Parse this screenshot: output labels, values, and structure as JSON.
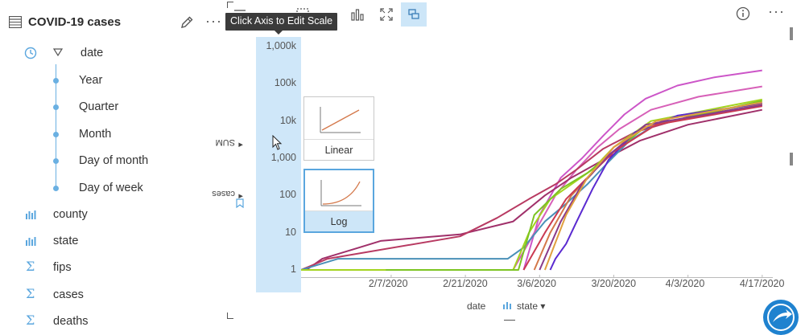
{
  "dataset": {
    "title": "COVID-19 cases",
    "date_field": "date",
    "date_subfields": [
      "Year",
      "Quarter",
      "Month",
      "Day of month",
      "Day of week"
    ],
    "fields": [
      {
        "label": "county",
        "type": "string"
      },
      {
        "label": "state",
        "type": "string"
      },
      {
        "label": "fips",
        "type": "number"
      },
      {
        "label": "cases",
        "type": "number"
      },
      {
        "label": "deaths",
        "type": "number"
      }
    ]
  },
  "card": {
    "tooltip": "Click Axis to Edit Scale",
    "active_tool": "scale-toggle",
    "y_axis_label": "SUM",
    "y_axis_field": "cases",
    "x_axis_field": "date",
    "color_field": "state",
    "scale_options": [
      "Linear",
      "Log"
    ],
    "selected_scale": "Log",
    "colors": {
      "accent": "#5aa6de",
      "axis_highlight": "#cfe7f9"
    }
  },
  "chart_data": {
    "type": "line",
    "title": "",
    "xlabel": "date",
    "ylabel": "SUM cases",
    "yscale": "log",
    "ylim": [
      1,
      1000000
    ],
    "y_ticks": [
      "1",
      "10",
      "100",
      "1,000",
      "10k",
      "100k",
      "1,000k"
    ],
    "x_range": [
      "2020-01-21",
      "2020-04-19"
    ],
    "x_ticks": [
      "2/7/2020",
      "2/21/2020",
      "3/6/2020",
      "3/20/2020",
      "4/3/2020",
      "4/17/2020"
    ],
    "legend": "none",
    "series": [
      {
        "color": "#cc55c8",
        "points": [
          [
            "2020-03-03",
            1
          ],
          [
            "2020-03-06",
            30
          ],
          [
            "2020-03-10",
            300
          ],
          [
            "2020-03-14",
            1000
          ],
          [
            "2020-03-18",
            4000
          ],
          [
            "2020-03-22",
            15000
          ],
          [
            "2020-03-26",
            40000
          ],
          [
            "2020-04-01",
            90000
          ],
          [
            "2020-04-08",
            150000
          ],
          [
            "2020-04-17",
            230000
          ]
        ]
      },
      {
        "color": "#d760b8",
        "points": [
          [
            "2020-03-01",
            1
          ],
          [
            "2020-03-05",
            10
          ],
          [
            "2020-03-09",
            100
          ],
          [
            "2020-03-13",
            500
          ],
          [
            "2020-03-17",
            2000
          ],
          [
            "2020-03-21",
            6000
          ],
          [
            "2020-03-27",
            20000
          ],
          [
            "2020-04-05",
            45000
          ],
          [
            "2020-04-17",
            85000
          ]
        ]
      },
      {
        "color": "#a0306a",
        "points": [
          [
            "2020-01-22",
            1
          ],
          [
            "2020-01-25",
            2
          ],
          [
            "2020-02-01",
            4
          ],
          [
            "2020-02-05",
            6
          ],
          [
            "2020-02-20",
            9
          ],
          [
            "2020-03-01",
            20
          ],
          [
            "2020-03-07",
            100
          ],
          [
            "2020-03-12",
            300
          ],
          [
            "2020-03-18",
            900
          ],
          [
            "2020-03-25",
            3000
          ],
          [
            "2020-04-03",
            8000
          ],
          [
            "2020-04-17",
            20000
          ]
        ]
      },
      {
        "color": "#b83a62",
        "points": [
          [
            "2020-01-21",
            1
          ],
          [
            "2020-01-26",
            2
          ],
          [
            "2020-02-20",
            8
          ],
          [
            "2020-02-27",
            25
          ],
          [
            "2020-03-04",
            80
          ],
          [
            "2020-03-09",
            200
          ],
          [
            "2020-03-13",
            500
          ],
          [
            "2020-03-18",
            1800
          ],
          [
            "2020-03-24",
            5000
          ],
          [
            "2020-04-03",
            13000
          ],
          [
            "2020-04-17",
            27000
          ]
        ]
      },
      {
        "color": "#4a90b8",
        "points": [
          [
            "2020-01-21",
            1
          ],
          [
            "2020-01-28",
            2
          ],
          [
            "2020-02-29",
            2
          ],
          [
            "2020-03-03",
            4
          ],
          [
            "2020-03-07",
            20
          ],
          [
            "2020-03-11",
            60
          ],
          [
            "2020-03-15",
            200
          ],
          [
            "2020-03-19",
            800
          ],
          [
            "2020-03-23",
            3000
          ],
          [
            "2020-03-30",
            12000
          ],
          [
            "2020-04-17",
            30000
          ]
        ]
      },
      {
        "color": "#a4d420",
        "points": [
          [
            "2020-01-21",
            1
          ],
          [
            "2020-03-01",
            1
          ],
          [
            "2020-03-04",
            10
          ],
          [
            "2020-03-08",
            80
          ],
          [
            "2020-03-12",
            200
          ],
          [
            "2020-03-16",
            500
          ],
          [
            "2020-03-20",
            2000
          ],
          [
            "2020-03-27",
            10000
          ],
          [
            "2020-04-17",
            38000
          ]
        ]
      },
      {
        "color": "#7cc422",
        "points": [
          [
            "2020-02-06",
            1
          ],
          [
            "2020-03-02",
            1
          ],
          [
            "2020-03-05",
            30
          ],
          [
            "2020-03-10",
            150
          ],
          [
            "2020-03-15",
            400
          ],
          [
            "2020-03-20",
            1500
          ],
          [
            "2020-03-26",
            7000
          ],
          [
            "2020-04-17",
            35000
          ]
        ]
      },
      {
        "color": "#5a2ad0",
        "points": [
          [
            "2020-03-08",
            1
          ],
          [
            "2020-03-09",
            2
          ],
          [
            "2020-03-11",
            5
          ],
          [
            "2020-03-13",
            20
          ],
          [
            "2020-03-16",
            150
          ],
          [
            "2020-03-19",
            900
          ],
          [
            "2020-03-24",
            5000
          ],
          [
            "2020-04-01",
            14000
          ],
          [
            "2020-04-17",
            30000
          ]
        ]
      },
      {
        "color": "#d4784a",
        "points": [
          [
            "2020-03-05",
            1
          ],
          [
            "2020-03-08",
            10
          ],
          [
            "2020-03-12",
            100
          ],
          [
            "2020-03-16",
            400
          ],
          [
            "2020-03-20",
            2000
          ],
          [
            "2020-03-26",
            7000
          ],
          [
            "2020-04-17",
            28000
          ]
        ]
      },
      {
        "color": "#ca3a52",
        "points": [
          [
            "2020-03-03",
            1
          ],
          [
            "2020-03-07",
            10
          ],
          [
            "2020-03-11",
            80
          ],
          [
            "2020-03-15",
            300
          ],
          [
            "2020-03-20",
            1500
          ],
          [
            "2020-03-28",
            8000
          ],
          [
            "2020-04-17",
            25000
          ]
        ]
      },
      {
        "color": "#8a3a8a",
        "points": [
          [
            "2020-03-06",
            1
          ],
          [
            "2020-03-10",
            20
          ],
          [
            "2020-03-14",
            200
          ],
          [
            "2020-03-19",
            1200
          ],
          [
            "2020-03-26",
            8000
          ],
          [
            "2020-04-17",
            27000
          ]
        ]
      },
      {
        "color": "#e0a040",
        "points": [
          [
            "2020-03-07",
            1
          ],
          [
            "2020-03-11",
            30
          ],
          [
            "2020-03-15",
            300
          ],
          [
            "2020-03-20",
            2000
          ],
          [
            "2020-03-28",
            10000
          ],
          [
            "2020-04-17",
            32000
          ]
        ]
      }
    ]
  }
}
